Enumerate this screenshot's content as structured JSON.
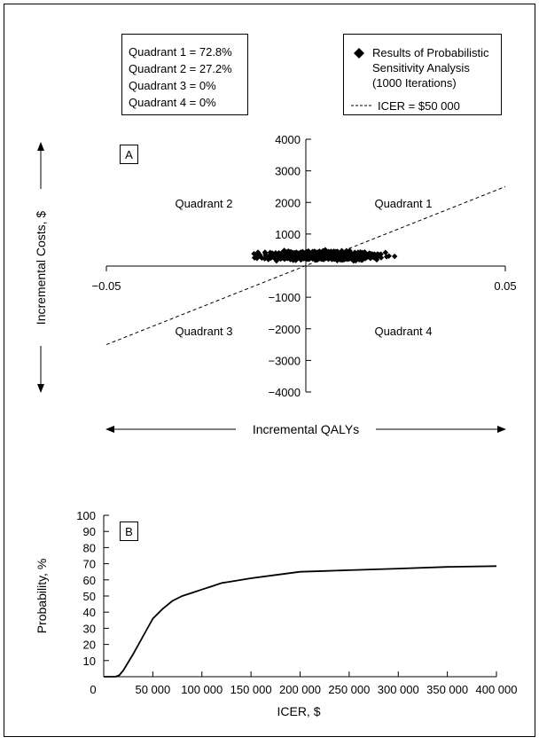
{
  "chart_data": [
    {
      "type": "scatter",
      "panel_label": "A",
      "quadrant_stats": [
        "Quadrant 1 = 72.8%",
        "Quadrant 2 = 27.2%",
        "Quadrant 3 = 0%",
        "Quadrant 4 = 0%"
      ],
      "quadrant_labels": [
        "Quadrant 1",
        "Quadrant 2",
        "Quadrant 3",
        "Quadrant 4"
      ],
      "legend": {
        "placement": "top-right",
        "scatter_label": [
          "Results of Probabilistic",
          "Sensitivity Analysis",
          "(1000 Iterations)"
        ],
        "line_label": "ICER = $50 000"
      },
      "xlabel": "Incremental QALYs",
      "ylabel": "Incremental Costs, $",
      "xlim": [
        -0.05,
        0.05
      ],
      "ylim": [
        -4000,
        4000
      ],
      "x_ticks": [
        "-0.05",
        "0.05"
      ],
      "y_ticks": [
        {
          "v": 4000,
          "label": "4000"
        },
        {
          "v": 3000,
          "label": "3000"
        },
        {
          "v": 2000,
          "label": "2000"
        },
        {
          "v": 1000,
          "label": "1000"
        },
        {
          "v": -1000,
          "label": "-1000"
        },
        {
          "v": -2000,
          "label": "-2000"
        },
        {
          "v": -3000,
          "label": "-3000"
        },
        {
          "v": -4000,
          "label": "-4000"
        }
      ],
      "threshold_line": {
        "wtp": 50000
      },
      "cloud": {
        "n": 1000,
        "x_range": [
          -0.013,
          0.027
        ],
        "y_range": [
          110,
          520
        ],
        "q1_share": 0.728
      },
      "grid": false
    },
    {
      "type": "line",
      "panel_label": "B",
      "xlabel": "ICER, $",
      "ylabel": "Probability, %",
      "xlim": [
        0,
        400000
      ],
      "ylim": [
        0,
        100
      ],
      "x_ticks": [
        {
          "v": 0,
          "label": "0"
        },
        {
          "v": 50000,
          "label": "50 000"
        },
        {
          "v": 100000,
          "label": "100 000"
        },
        {
          "v": 150000,
          "label": "150 000"
        },
        {
          "v": 200000,
          "label": "200 000"
        },
        {
          "v": 250000,
          "label": "250 000"
        },
        {
          "v": 300000,
          "label": "300 000"
        },
        {
          "v": 350000,
          "label": "350 000"
        },
        {
          "v": 400000,
          "label": "400 000"
        }
      ],
      "y_ticks": [
        {
          "v": 10,
          "label": "10"
        },
        {
          "v": 20,
          "label": "20"
        },
        {
          "v": 30,
          "label": "30"
        },
        {
          "v": 40,
          "label": "40"
        },
        {
          "v": 50,
          "label": "50"
        },
        {
          "v": 60,
          "label": "60"
        },
        {
          "v": 70,
          "label": "70"
        },
        {
          "v": 80,
          "label": "80"
        },
        {
          "v": 90,
          "label": "90"
        },
        {
          "v": 100,
          "label": "100"
        }
      ],
      "x": [
        0,
        12000,
        16000,
        20000,
        25000,
        30000,
        40000,
        50000,
        60000,
        70000,
        80000,
        90000,
        100000,
        110000,
        120000,
        130000,
        150000,
        175000,
        200000,
        225000,
        250000,
        300000,
        350000,
        400000
      ],
      "values": [
        0,
        0,
        1,
        4,
        9,
        14,
        25,
        36,
        42,
        47,
        50,
        52,
        54,
        56,
        58,
        59,
        61,
        63,
        65,
        65.5,
        66,
        67,
        68,
        68.5
      ],
      "grid": false
    }
  ]
}
